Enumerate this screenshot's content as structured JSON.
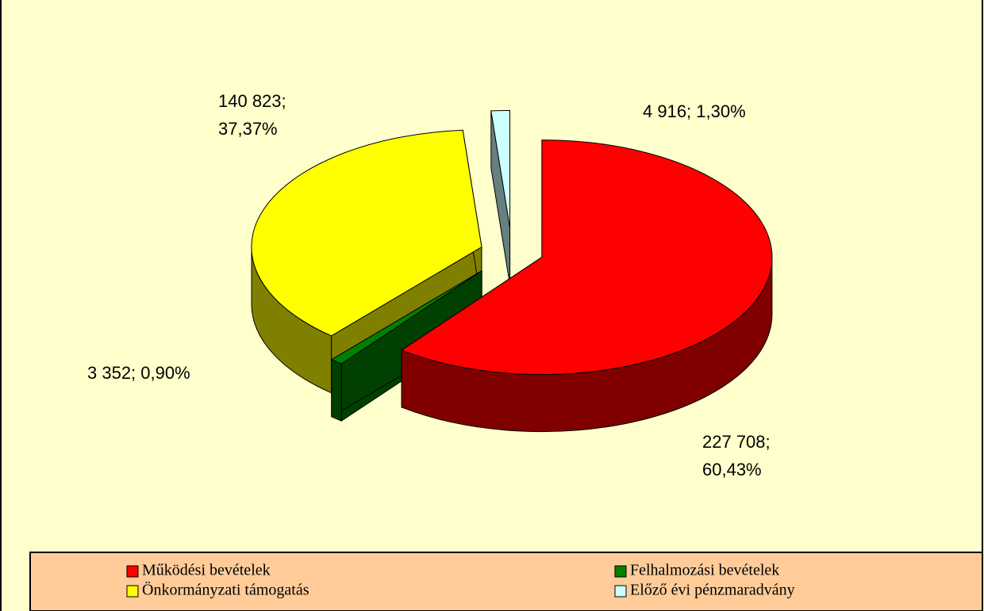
{
  "chart_data": {
    "type": "pie",
    "categories": [
      "Működési bevételek",
      "Felhalmozási bevételek",
      "Önkormányzati támogatás",
      "Előző évi pénzmaradvány"
    ],
    "values": [
      227708,
      3352,
      140823,
      4916
    ],
    "value_labels": [
      "227 708; 60,43%",
      "3 352; 0,90%",
      "140 823; 37,37%",
      "4 916; 1,30%"
    ],
    "colors": [
      "#ff0000",
      "#008000",
      "#ffff00",
      "#ccffff"
    ],
    "legend": "bottom"
  }
}
